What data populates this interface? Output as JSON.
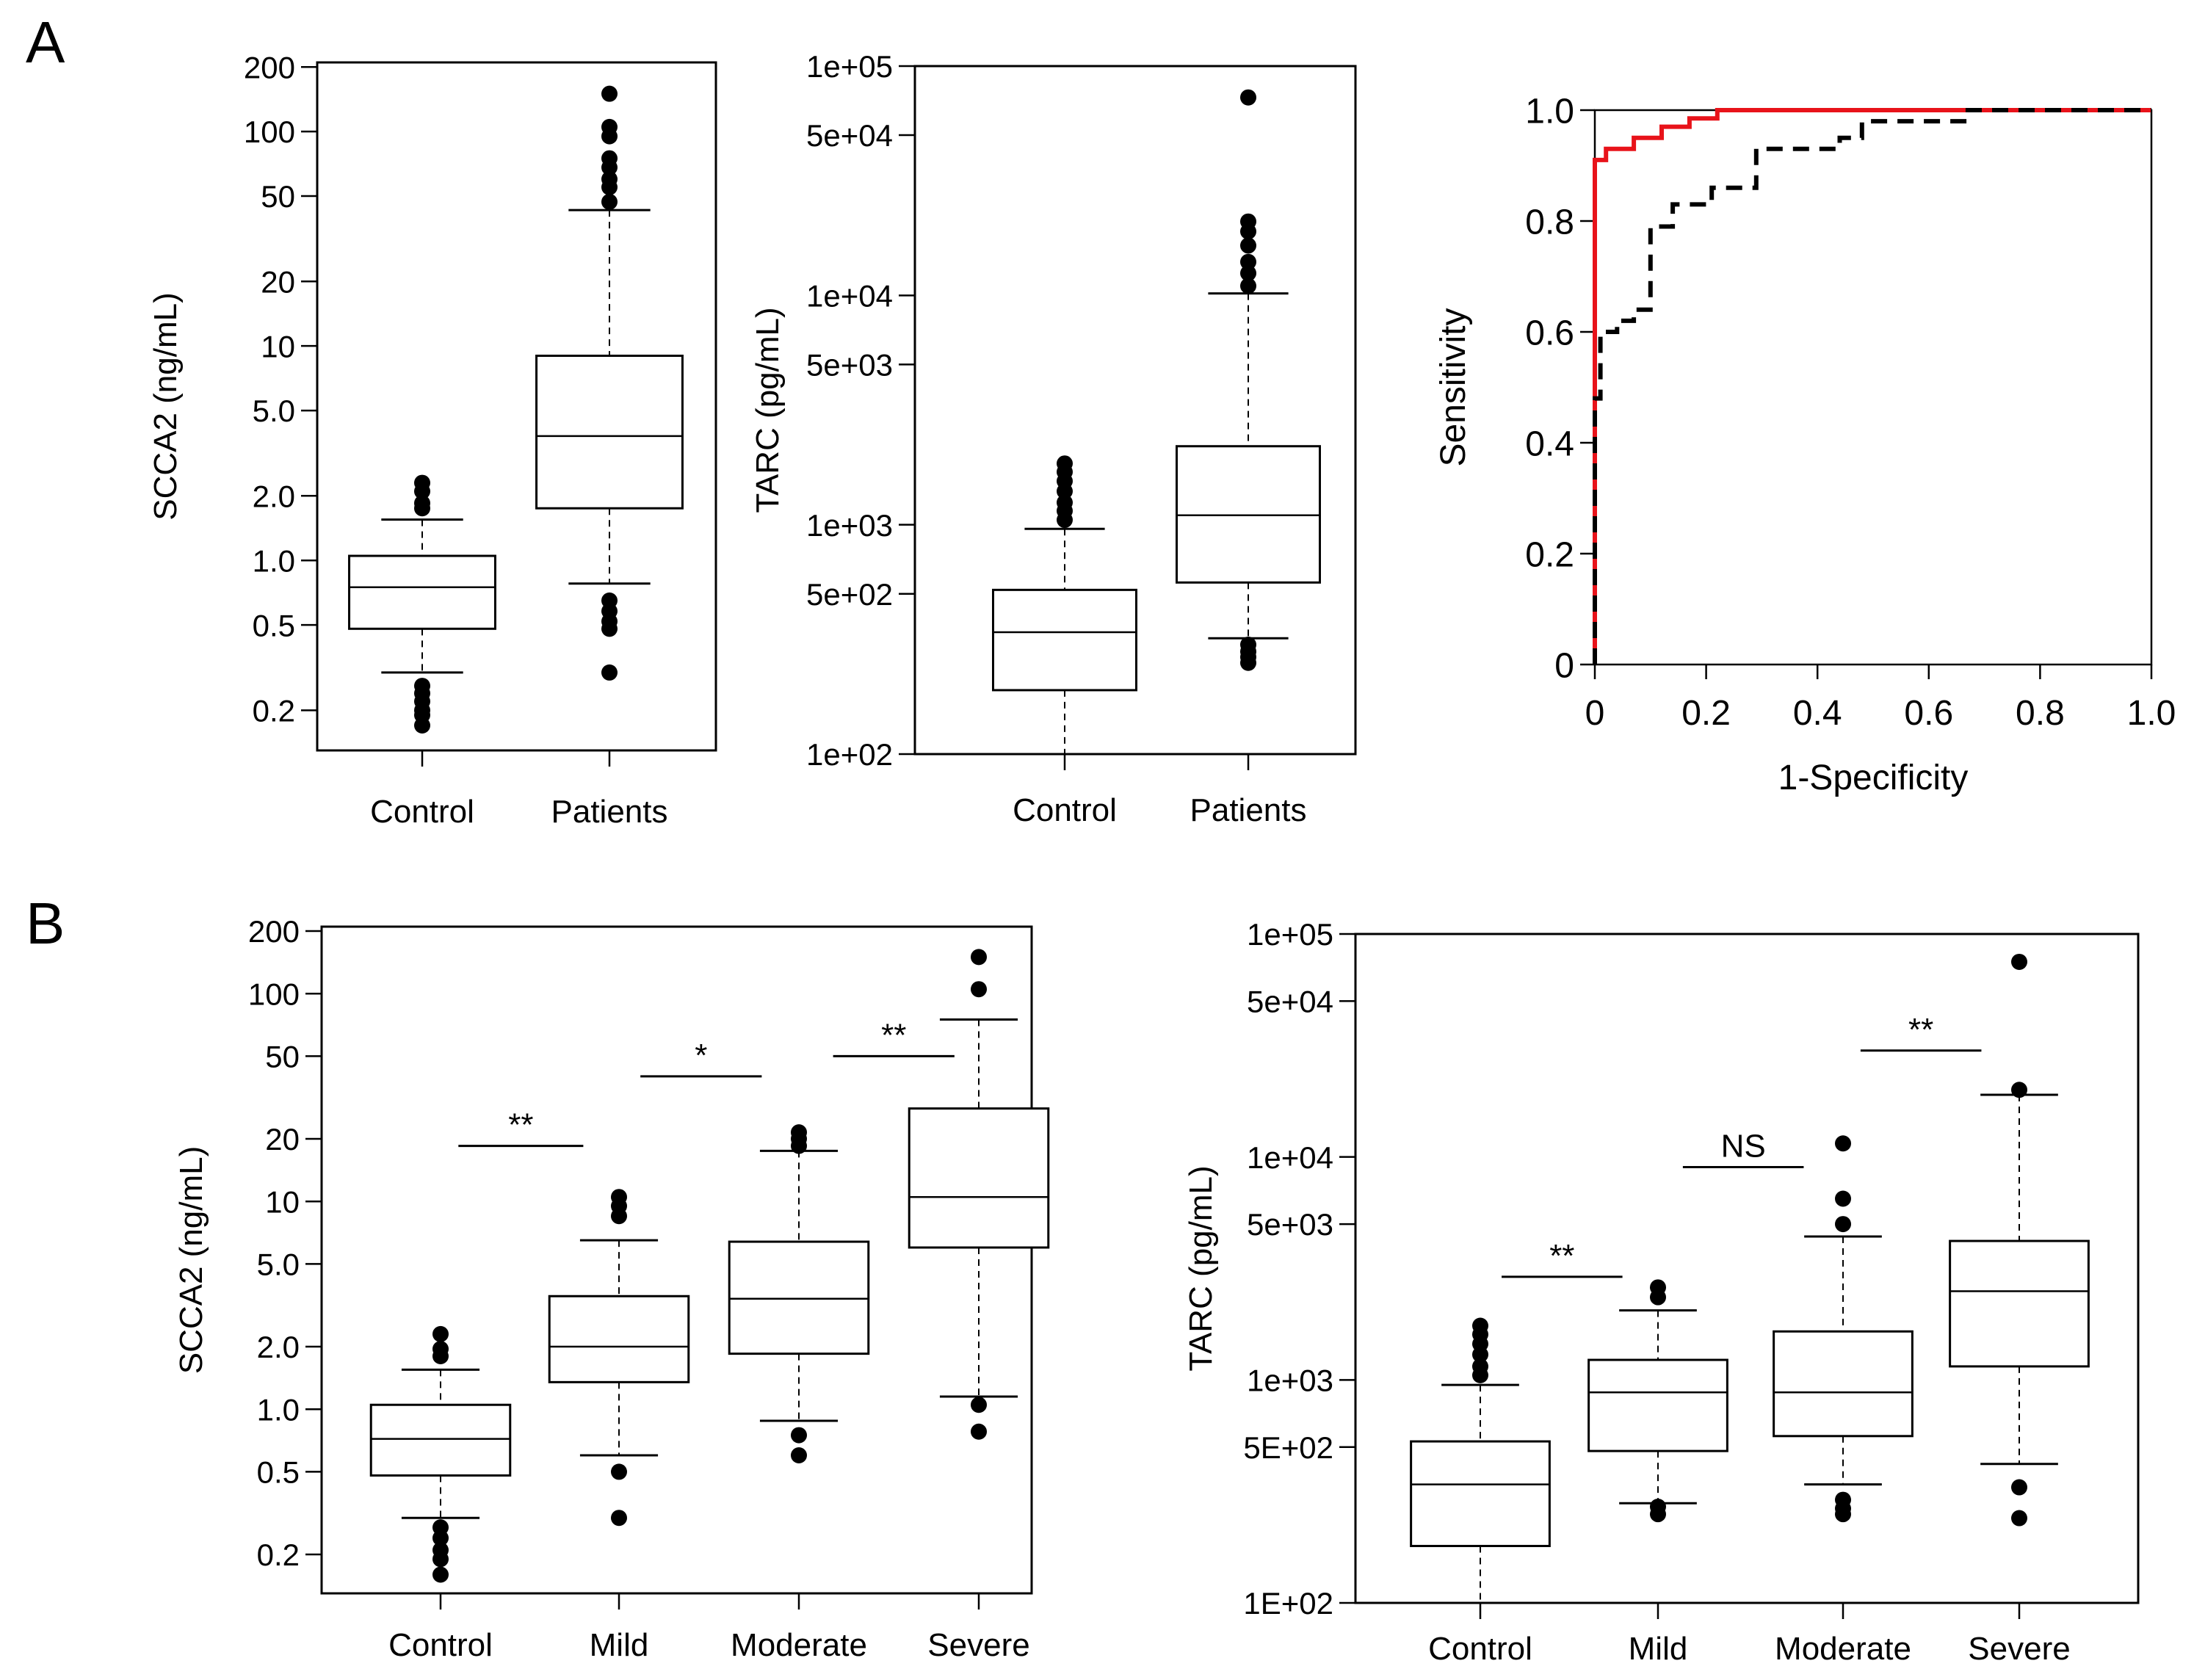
{
  "panels": {
    "a_label": "A",
    "b_label": "B"
  },
  "colors": {
    "roc_red": "#e8131a",
    "ink": "#000000"
  },
  "chart_data": [
    {
      "id": "a1",
      "type": "box",
      "scale": "log",
      "ylabel": "SCCA2 (ng/mL)",
      "ylim": [
        0.13,
        210
      ],
      "yticks": [
        0.2,
        0.5,
        1.0,
        2.0,
        5.0,
        10,
        20,
        50,
        100,
        200
      ],
      "ytick_labels": [
        "0.2",
        "0.5",
        "1.0",
        "2.0",
        "5.0",
        "10",
        "20",
        "50",
        "100",
        "200"
      ],
      "categories": [
        "Control",
        "Patients"
      ],
      "boxes": [
        {
          "lw": 0.3,
          "q1": 0.48,
          "med": 0.75,
          "q3": 1.05,
          "uw": 1.55,
          "out": [
            0.17,
            0.19,
            0.2,
            0.22,
            0.24,
            0.26,
            1.75,
            1.85,
            2.1,
            2.3
          ]
        },
        {
          "lw": 0.78,
          "q1": 1.75,
          "med": 3.8,
          "q3": 9.0,
          "uw": 43,
          "out": [
            0.3,
            0.48,
            0.52,
            0.58,
            0.65,
            47,
            55,
            60,
            68,
            75,
            95,
            105,
            150
          ]
        }
      ],
      "annotations": []
    },
    {
      "id": "a2",
      "type": "box",
      "scale": "log",
      "ylabel": "TARC (pg/mL)",
      "ylim": [
        100,
        100000
      ],
      "yticks": [
        100,
        500,
        1000,
        5000,
        10000,
        50000,
        100000
      ],
      "ytick_labels": [
        "1e+02",
        "5e+02",
        "1e+03",
        "5e+03",
        "1e+04",
        "5e+04",
        "1e+05"
      ],
      "categories": [
        "Control",
        "Patients"
      ],
      "boxes": [
        {
          "lw": 100,
          "q1": 190,
          "med": 340,
          "q3": 520,
          "uw": 960,
          "out": [
            1050,
            1150,
            1250,
            1400,
            1550,
            1700,
            1850
          ]
        },
        {
          "lw": 320,
          "q1": 560,
          "med": 1100,
          "q3": 2200,
          "uw": 10200,
          "out": [
            250,
            265,
            280,
            300,
            11000,
            12500,
            14000,
            16500,
            19000,
            21000,
            73000
          ]
        }
      ],
      "annotations": []
    },
    {
      "id": "roc",
      "type": "line",
      "xlabel": "1-Specificity",
      "ylabel": "Sensitivity",
      "xlim": [
        0,
        1
      ],
      "ylim": [
        0,
        1
      ],
      "xticks": [
        0,
        0.2,
        0.4,
        0.6,
        0.8,
        1.0
      ],
      "xtick_labels": [
        "0",
        "0.2",
        "0.4",
        "0.6",
        "0.8",
        "1.0"
      ],
      "yticks": [
        0,
        0.2,
        0.4,
        0.6,
        0.8,
        1.0
      ],
      "ytick_labels": [
        "0",
        "0.2",
        "0.4",
        "0.6",
        "0.8",
        "1.0"
      ],
      "series": [
        {
          "style": "solid-red",
          "x": [
            0,
            0,
            0.02,
            0.02,
            0.07,
            0.07,
            0.12,
            0.12,
            0.17,
            0.17,
            0.22,
            0.22,
            1.0
          ],
          "y": [
            0,
            0.91,
            0.91,
            0.93,
            0.93,
            0.95,
            0.95,
            0.97,
            0.97,
            0.985,
            0.985,
            1.0,
            1.0
          ]
        },
        {
          "style": "dashed-black",
          "x": [
            0,
            0,
            0.01,
            0.01,
            0.04,
            0.04,
            0.07,
            0.07,
            0.1,
            0.1,
            0.14,
            0.14,
            0.21,
            0.21,
            0.29,
            0.29,
            0.44,
            0.44,
            0.48,
            0.48,
            0.67,
            0.67,
            1.0
          ],
          "y": [
            0,
            0.48,
            0.48,
            0.6,
            0.6,
            0.62,
            0.62,
            0.64,
            0.64,
            0.79,
            0.79,
            0.83,
            0.83,
            0.86,
            0.86,
            0.93,
            0.93,
            0.95,
            0.95,
            0.98,
            0.98,
            1.0,
            1.0
          ]
        }
      ]
    },
    {
      "id": "b1",
      "type": "box",
      "scale": "log",
      "ylabel": "SCCA2 (ng/mL)",
      "ylim": [
        0.13,
        210
      ],
      "yticks": [
        0.2,
        0.5,
        1.0,
        2.0,
        5.0,
        10,
        20,
        50,
        100,
        200
      ],
      "ytick_labels": [
        "0.2",
        "0.5",
        "1.0",
        "2.0",
        "5.0",
        "10",
        "20",
        "50",
        "100",
        "200"
      ],
      "categories": [
        "Control",
        "Mild",
        "Moderate",
        "Severe"
      ],
      "boxes": [
        {
          "lw": 0.3,
          "q1": 0.48,
          "med": 0.72,
          "q3": 1.05,
          "uw": 1.55,
          "out": [
            0.16,
            0.19,
            0.21,
            0.24,
            0.27,
            1.8,
            1.95,
            2.3
          ]
        },
        {
          "lw": 0.6,
          "q1": 1.35,
          "med": 2.0,
          "q3": 3.5,
          "uw": 6.5,
          "out": [
            0.3,
            0.5,
            8.5,
            9.5,
            10.5
          ]
        },
        {
          "lw": 0.88,
          "q1": 1.85,
          "med": 3.4,
          "q3": 6.4,
          "uw": 17.5,
          "out": [
            0.6,
            0.75,
            18.5,
            20,
            21.5
          ]
        },
        {
          "lw": 1.15,
          "q1": 6.0,
          "med": 10.5,
          "q3": 28,
          "uw": 75,
          "out": [
            0.78,
            1.05,
            105,
            150
          ]
        }
      ],
      "annotations": [
        {
          "label": "**",
          "x1": 0.1,
          "x2": 0.8,
          "y": 18.5
        },
        {
          "label": "*",
          "x1": 1.12,
          "x2": 1.8,
          "y": 40
        },
        {
          "label": "**",
          "x1": 2.2,
          "x2": 2.88,
          "y": 50
        }
      ]
    },
    {
      "id": "b2",
      "type": "box",
      "scale": "log",
      "ylabel": "TARC (pg/mL)",
      "ylim": [
        100,
        100000
      ],
      "yticks": [
        100,
        500,
        1000,
        5000,
        10000,
        50000,
        100000
      ],
      "ytick_labels": [
        "1E+02",
        "5E+02",
        "1e+03",
        "5e+03",
        "1e+04",
        "5e+04",
        "1e+05"
      ],
      "categories": [
        "Control",
        "Mild",
        "Moderate",
        "Severe"
      ],
      "boxes": [
        {
          "lw": 100,
          "q1": 180,
          "med": 340,
          "q3": 530,
          "uw": 950,
          "out": [
            1050,
            1150,
            1300,
            1450,
            1600,
            1750
          ]
        },
        {
          "lw": 280,
          "q1": 480,
          "med": 880,
          "q3": 1230,
          "uw": 2050,
          "out": [
            250,
            270,
            2350,
            2600
          ]
        },
        {
          "lw": 340,
          "q1": 560,
          "med": 880,
          "q3": 1650,
          "uw": 4400,
          "out": [
            250,
            265,
            290,
            5000,
            6500,
            11500
          ]
        },
        {
          "lw": 420,
          "q1": 1150,
          "med": 2500,
          "q3": 4200,
          "uw": 19000,
          "out": [
            240,
            330,
            20000,
            75000
          ]
        }
      ],
      "annotations": [
        {
          "label": "**",
          "x1": 0.12,
          "x2": 0.8,
          "y": 2900
        },
        {
          "label": "NS",
          "x1": 1.14,
          "x2": 1.82,
          "y": 9000
        },
        {
          "label": "**",
          "x1": 2.14,
          "x2": 2.82,
          "y": 30000
        }
      ]
    }
  ]
}
